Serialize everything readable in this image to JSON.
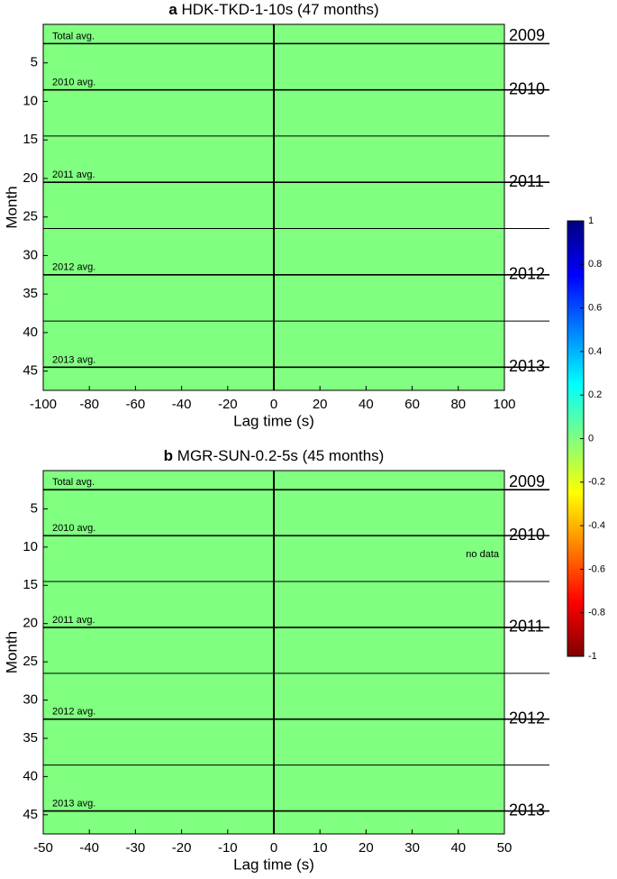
{
  "chart_data": [
    {
      "type": "heatmap",
      "label": "a",
      "title": "HDK-TKD-1-10s (47 months)",
      "xlabel": "Lag time (s)",
      "ylabel": "Month",
      "xlim": [
        -100,
        100
      ],
      "xticks": [
        -100,
        -80,
        -60,
        -40,
        -20,
        0,
        20,
        40,
        60,
        80,
        100
      ],
      "ylim": [
        0,
        47.5
      ],
      "yticks": [
        5,
        10,
        15,
        20,
        25,
        30,
        35,
        40,
        45
      ],
      "vline": 0,
      "background": "#80ff80",
      "rows": [
        {
          "month": 2.5,
          "avg": "Total avg.",
          "year": "2009"
        },
        {
          "month": 8.5,
          "avg": "2010 avg.",
          "year": "2010"
        },
        {
          "month": 14.5
        },
        {
          "month": 20.5,
          "avg": "2011 avg.",
          "year": "2011"
        },
        {
          "month": 26.5
        },
        {
          "month": 32.5,
          "avg": "2012 avg.",
          "year": "2012"
        },
        {
          "month": 38.5
        },
        {
          "month": 44.5,
          "avg": "2013 avg.",
          "year": "2013"
        }
      ]
    },
    {
      "type": "heatmap",
      "label": "b",
      "title": "MGR-SUN-0.2-5s (45 months)",
      "xlabel": "Lag time (s)",
      "ylabel": "Month",
      "xlim": [
        -50,
        50
      ],
      "xticks": [
        -50,
        -40,
        -30,
        -20,
        -10,
        0,
        10,
        20,
        30,
        40,
        50
      ],
      "ylim": [
        0,
        47.5
      ],
      "yticks": [
        5,
        10,
        15,
        20,
        25,
        30,
        35,
        40,
        45
      ],
      "vline": 0,
      "background": "#80ff80",
      "annotation": "no data",
      "rows": [
        {
          "month": 2.5,
          "avg": "Total avg.",
          "year": "2009"
        },
        {
          "month": 8.5,
          "avg": "2010 avg.",
          "year": "2010"
        },
        {
          "month": 14.5
        },
        {
          "month": 20.5,
          "avg": "2011 avg.",
          "year": "2011"
        },
        {
          "month": 26.5
        },
        {
          "month": 32.5,
          "avg": "2012 avg.",
          "year": "2012"
        },
        {
          "month": 38.5
        },
        {
          "month": 44.5,
          "avg": "2013 avg.",
          "year": "2013"
        }
      ]
    }
  ],
  "colorbar": {
    "range": [
      -1,
      1
    ],
    "ticks": [
      1,
      0.8,
      0.6,
      0.4,
      0.2,
      0,
      -0.2,
      -0.4,
      -0.6,
      -0.8,
      -1
    ],
    "colors": [
      "#800000",
      "#ff0000",
      "#ff8000",
      "#ffff00",
      "#80ff80",
      "#00ffff",
      "#0080ff",
      "#0000ff",
      "#000080"
    ]
  }
}
